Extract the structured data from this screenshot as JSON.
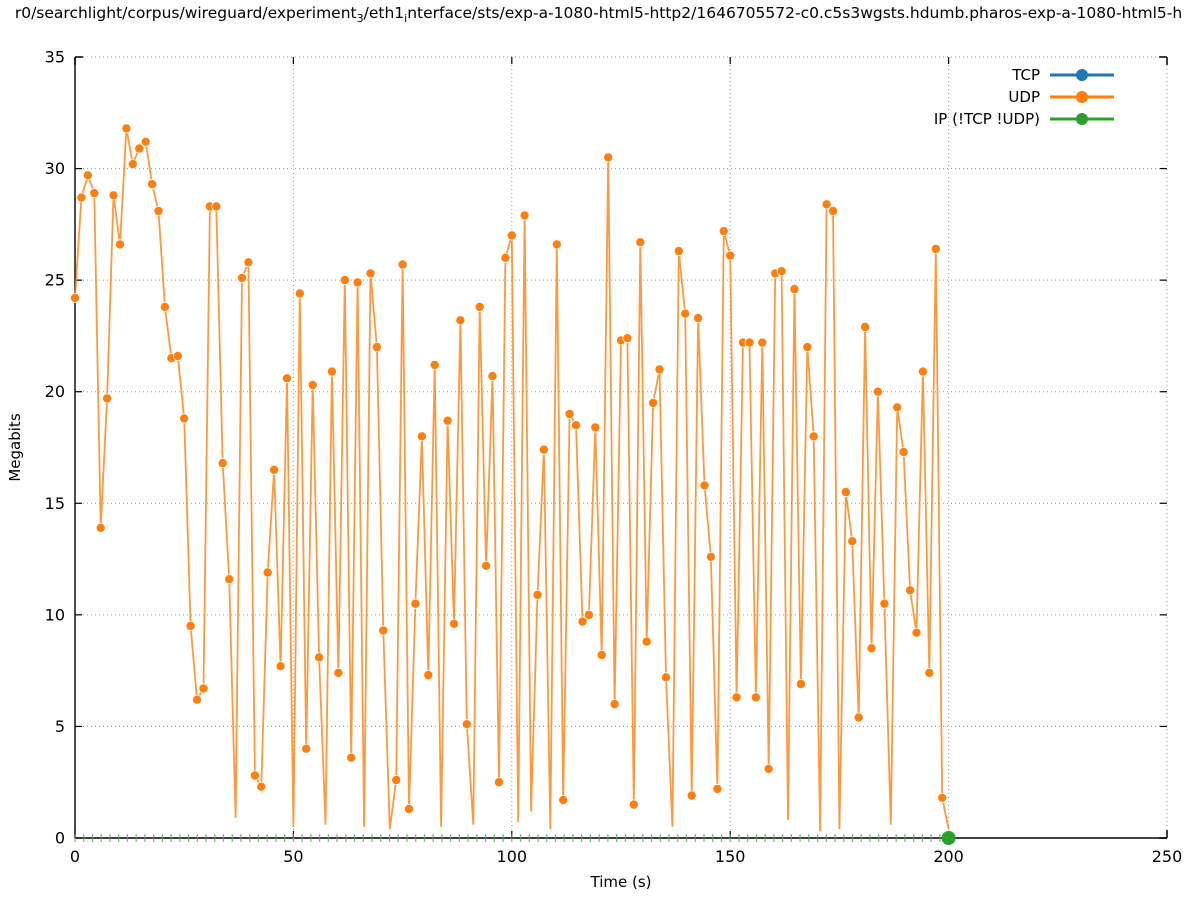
{
  "title": {
    "part1": "r0/searchlight/corpus/wireguard/experiment",
    "sub1": "3",
    "part2": "/eth1",
    "sub2": "i",
    "part3": "nterface/sts/exp-a-1080-html5-http2/1646705572-c0.c5s3wgsts.hdumb.pharos-exp-a-1080-html5-h"
  },
  "chart_data": {
    "type": "line",
    "xlabel": "Time (s)",
    "ylabel": "Megabits",
    "xlim": [
      0,
      250
    ],
    "ylim": [
      0,
      35
    ],
    "xticks": [
      0,
      50,
      100,
      150,
      200,
      250
    ],
    "yticks": [
      0,
      5,
      10,
      15,
      20,
      25,
      30,
      35
    ],
    "grid": "dotted",
    "legend_position": "top-right-inside",
    "series": [
      {
        "name": "TCP",
        "color": "#1f77b4",
        "style": "line-with-points",
        "visible_points": "none (hidden at 0 behind other series)",
        "values": []
      },
      {
        "name": "UDP",
        "color": "#ff7f0e",
        "style": "line-with-points",
        "x_start": 0,
        "x_end": 200,
        "values": [
          24.2,
          28.7,
          29.7,
          28.9,
          13.9,
          19.7,
          28.8,
          26.6,
          31.8,
          30.2,
          30.9,
          31.2,
          29.3,
          28.1,
          23.8,
          21.5,
          21.6,
          18.8,
          9.5,
          6.2,
          6.7,
          28.3,
          28.3,
          16.8,
          11.6,
          0.9,
          25.1,
          25.8,
          2.8,
          2.3,
          11.9,
          16.5,
          7.7,
          20.6,
          0.5,
          24.4,
          4.0,
          20.3,
          8.1,
          0.6,
          20.9,
          7.4,
          25.0,
          3.6,
          24.9,
          0.5,
          25.3,
          22.0,
          9.3,
          0.4,
          2.6,
          25.7,
          1.3,
          10.5,
          18.0,
          7.3,
          21.2,
          0.5,
          18.7,
          9.6,
          23.2,
          5.1,
          0.6,
          23.8,
          12.2,
          20.7,
          2.5,
          26.0,
          27.0,
          0.7,
          27.9,
          1.2,
          10.9,
          17.4,
          0.4,
          26.6,
          1.7,
          19.0,
          18.5,
          9.7,
          10.0,
          18.4,
          8.2,
          30.5,
          6.0,
          22.3,
          22.4,
          1.5,
          26.7,
          8.8,
          19.5,
          21.0,
          7.2,
          0.5,
          26.3,
          23.5,
          1.9,
          23.3,
          15.8,
          12.6,
          2.2,
          27.2,
          26.1,
          6.3,
          22.2,
          22.2,
          6.3,
          22.2,
          3.1,
          25.3,
          25.4,
          0.8,
          24.6,
          6.9,
          22.0,
          18.0,
          0.3,
          28.4,
          28.1,
          0.4,
          15.5,
          13.3,
          5.4,
          22.9,
          8.5,
          20.0,
          10.5,
          0.6,
          19.3,
          17.3,
          11.1,
          9.2,
          20.9,
          7.4,
          26.4,
          1.8,
          0.4
        ]
      },
      {
        "name": "IP (!TCP  !UDP)",
        "color": "#2ca02c",
        "tick_color": "#5aa85a",
        "style": "line-with-points",
        "representation": "small green ticks along y=0 from t=0 to t=200 every 2 s, ending with one large dot",
        "x_start": 0,
        "x_end": 200,
        "tick_step": 2,
        "baseline_value": 0,
        "final_point": [
          200,
          0
        ]
      }
    ]
  }
}
